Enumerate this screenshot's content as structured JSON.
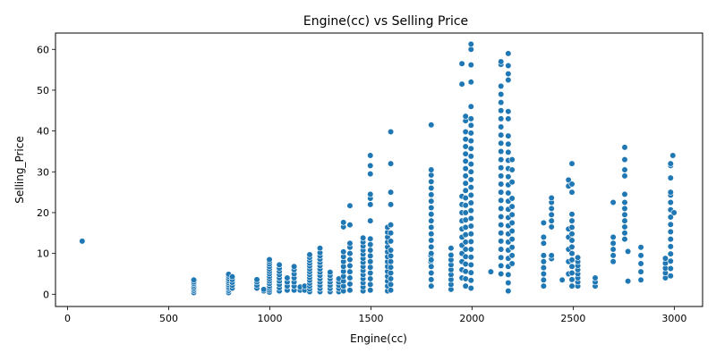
{
  "chart_data": {
    "type": "scatter",
    "title": "Engine(cc) vs Selling Price",
    "xlabel": "Engine(cc)",
    "ylabel": "Selling_Price",
    "xlim": [
      -60,
      3140
    ],
    "ylim": [
      -3,
      64
    ],
    "xticks": [
      0,
      500,
      1000,
      1500,
      2000,
      2500,
      3000
    ],
    "yticks": [
      0,
      10,
      20,
      30,
      40,
      50,
      60
    ],
    "grid": false,
    "legend": "none",
    "marker_color": "#1f77b4",
    "marker_edge": "#ffffff",
    "columns": [
      {
        "x": 72,
        "y": [
          13
        ]
      },
      {
        "x": 624,
        "y": [
          0.4,
          0.9,
          1.3,
          1.7,
          2.2,
          2.6,
          3.0,
          3.5
        ]
      },
      {
        "x": 796,
        "y": [
          0.4,
          0.9,
          1.4,
          1.8,
          2.3,
          2.8,
          3.3,
          3.8,
          4.4,
          4.9
        ]
      },
      {
        "x": 814,
        "y": [
          1.5,
          2.2,
          2.9,
          3.6,
          4.3
        ]
      },
      {
        "x": 936,
        "y": [
          1.5,
          2.2,
          3.0,
          3.6
        ]
      },
      {
        "x": 970,
        "y": [
          0.8,
          1.2
        ]
      },
      {
        "x": 998,
        "y": [
          0.5,
          1.0,
          1.5,
          2.0,
          2.6,
          3.2,
          3.8,
          4.4,
          5.0,
          5.6,
          6.2,
          6.8,
          7.4,
          8.0,
          8.5
        ]
      },
      {
        "x": 1047,
        "y": [
          0.8,
          1.6,
          2.4,
          3.2,
          4.0,
          4.8,
          5.6,
          6.4,
          7.2
        ]
      },
      {
        "x": 1086,
        "y": [
          1.0,
          2.0,
          3.0,
          4.0
        ]
      },
      {
        "x": 1120,
        "y": [
          1.0,
          2.0,
          3.0,
          4.0,
          5.0,
          6.0,
          6.8
        ]
      },
      {
        "x": 1150,
        "y": [
          1.0,
          1.8
        ]
      },
      {
        "x": 1172,
        "y": [
          1.0,
          2.0
        ]
      },
      {
        "x": 1197,
        "y": [
          0.6,
          1.3,
          2.0,
          2.7,
          3.4,
          4.1,
          4.8,
          5.5,
          6.2,
          6.9,
          7.6,
          8.3,
          9.0,
          9.7
        ]
      },
      {
        "x": 1248,
        "y": [
          0.6,
          1.4,
          2.2,
          3.0,
          3.8,
          4.6,
          5.4,
          6.2,
          7.0,
          7.8,
          8.6,
          9.4,
          10.2,
          11.3
        ]
      },
      {
        "x": 1298,
        "y": [
          0.6,
          1.4,
          2.2,
          3.0,
          3.8,
          4.6,
          5.4
        ]
      },
      {
        "x": 1341,
        "y": [
          0.6,
          1.4,
          2.2,
          3.0,
          3.8
        ]
      },
      {
        "x": 1364,
        "y": [
          0.8,
          2.0,
          3.2,
          4.4,
          5.6,
          6.8,
          8.0,
          9.2,
          10.4,
          16.5,
          17.6
        ]
      },
      {
        "x": 1396,
        "y": [
          1.0,
          2.5,
          4.0,
          5.5,
          7.0,
          8.5,
          10.0,
          11.5,
          12.5,
          17.0,
          21.7
        ]
      },
      {
        "x": 1461,
        "y": [
          0.8,
          1.8,
          2.8,
          3.8,
          4.8,
          5.8,
          6.8,
          7.8,
          8.8,
          9.8,
          10.8,
          11.8,
          12.8,
          13.8
        ]
      },
      {
        "x": 1497,
        "y": [
          1.0,
          2.4,
          3.8,
          5.2,
          6.6,
          8.0,
          9.4,
          10.8,
          12.2,
          13.6,
          18.0,
          22.0,
          23.5,
          24.5,
          29.5,
          31.5,
          34.0
        ]
      },
      {
        "x": 1582,
        "y": [
          0.8,
          2.0,
          3.2,
          4.4,
          5.6,
          6.8,
          8.0,
          9.2,
          10.4,
          11.6,
          12.8,
          14.0,
          15.2,
          16.4
        ]
      },
      {
        "x": 1598,
        "y": [
          1.0,
          2.4,
          3.8,
          5.2,
          6.6,
          8.0,
          9.4,
          10.8,
          13.0,
          15.0,
          17.0,
          22.0,
          25.0,
          32.0,
          39.8
        ]
      },
      {
        "x": 1796,
        "y": [
          8.0,
          9.5
        ]
      },
      {
        "x": 1798,
        "y": [
          2.0,
          3.6,
          5.2,
          6.8,
          8.4,
          10.0,
          11.6,
          13.2,
          14.8,
          16.4,
          18.0,
          19.6,
          21.2,
          22.8,
          24.4,
          26.0,
          27.6,
          29.2,
          30.5,
          41.5
        ]
      },
      {
        "x": 1896,
        "y": [
          1.2,
          2.4,
          3.6,
          4.8,
          6.0,
          7.2,
          8.4,
          9.6,
          11.3
        ]
      },
      {
        "x": 1950,
        "y": [
          4.0,
          6.0,
          8.0,
          10.0,
          12.0,
          14.0,
          16.0,
          18.0,
          20.0,
          22.0,
          24.0,
          51.5,
          56.5
        ]
      },
      {
        "x": 1968,
        "y": [
          2.0,
          3.8,
          5.6,
          7.4,
          9.2,
          11.0,
          12.8,
          14.6,
          16.4,
          18.2,
          20.0,
          21.8,
          23.6,
          25.4,
          27.2,
          29.0,
          30.8,
          32.6,
          34.4,
          36.2,
          38.0,
          39.8,
          42.5,
          43.6
        ]
      },
      {
        "x": 1995,
        "y": [
          1.5,
          3.4,
          5.3,
          7.2,
          9.1,
          11.0,
          12.9,
          14.8,
          16.7,
          18.6,
          20.5,
          22.4,
          24.3,
          26.2,
          28.1,
          30.0,
          31.9,
          33.8,
          35.7,
          37.6,
          39.5,
          41.4,
          43.0,
          46.0,
          52.0,
          56.2,
          60.0,
          61.3
        ]
      },
      {
        "x": 2093,
        "y": [
          5.5
        ]
      },
      {
        "x": 2143,
        "y": [
          5.0,
          7.0,
          9.0,
          11.0,
          13.0,
          15.0,
          17.0,
          19.0,
          21.0,
          23.0,
          25.0,
          27.0,
          29.0,
          31.0,
          33.0,
          35.0,
          37.0,
          39.0,
          41.0,
          43.0,
          45.0,
          47.0,
          49.0,
          51.0,
          56.3,
          57.0
        ]
      },
      {
        "x": 2179,
        "y": [
          0.8,
          2.8,
          4.8,
          6.8,
          8.8,
          10.8,
          12.8,
          14.8,
          16.8,
          18.8,
          20.8,
          22.8,
          24.8,
          26.8,
          28.8,
          30.8,
          32.8,
          34.8,
          36.8,
          38.8,
          43.0,
          44.8,
          52.5,
          54.0,
          56.0,
          59.0
        ]
      },
      {
        "x": 2198,
        "y": [
          7.5,
          9.5,
          11.5,
          13.5,
          15.5,
          17.5,
          19.5,
          21.5,
          23.5,
          27.5,
          30.5,
          33.0
        ]
      },
      {
        "x": 2354,
        "y": [
          2.0,
          3.5,
          5.0,
          6.5,
          8.0,
          9.5,
          12.5,
          14.0,
          17.5
        ]
      },
      {
        "x": 2393,
        "y": [
          8.7,
          9.5,
          16.5,
          18.0,
          19.5,
          21.0,
          22.5,
          23.6
        ]
      },
      {
        "x": 2446,
        "y": [
          3.5
        ]
      },
      {
        "x": 2477,
        "y": [
          5.0,
          8.0,
          11.0,
          14.0,
          16.0,
          26.5,
          28.0
        ]
      },
      {
        "x": 2494,
        "y": [
          2.0,
          3.6,
          5.2,
          6.8,
          8.4,
          10.0,
          11.6,
          13.2,
          14.8,
          16.4,
          18.0,
          19.6,
          25.0,
          27.0,
          32.0
        ]
      },
      {
        "x": 2523,
        "y": [
          2.0,
          3.0,
          4.0,
          5.0,
          6.0,
          7.0,
          8.0,
          9.0
        ]
      },
      {
        "x": 2609,
        "y": [
          2.0,
          3.0,
          4.0
        ]
      },
      {
        "x": 2698,
        "y": [
          8.0,
          9.5,
          11.0,
          12.5,
          14.0,
          22.5
        ]
      },
      {
        "x": 2755,
        "y": [
          13.5,
          15.0,
          16.5,
          18.0,
          19.5,
          21.0,
          22.5,
          24.5,
          29.0,
          30.5,
          33.0,
          36.0
        ]
      },
      {
        "x": 2771,
        "y": [
          3.2,
          10.5
        ]
      },
      {
        "x": 2835,
        "y": [
          3.5,
          5.5,
          7.5,
          9.5,
          11.5
        ]
      },
      {
        "x": 2956,
        "y": [
          4.0,
          5.2,
          6.4,
          7.6,
          8.8
        ]
      },
      {
        "x": 2982,
        "y": [
          4.5,
          6.3,
          8.1,
          9.9,
          11.7,
          13.5,
          15.3,
          17.1,
          18.9,
          20.7,
          22.5,
          24.3,
          25.0,
          28.5,
          31.5,
          32.0
        ]
      },
      {
        "x": 2993,
        "y": [
          34.0
        ]
      },
      {
        "x": 2999,
        "y": [
          20.0
        ]
      }
    ]
  }
}
